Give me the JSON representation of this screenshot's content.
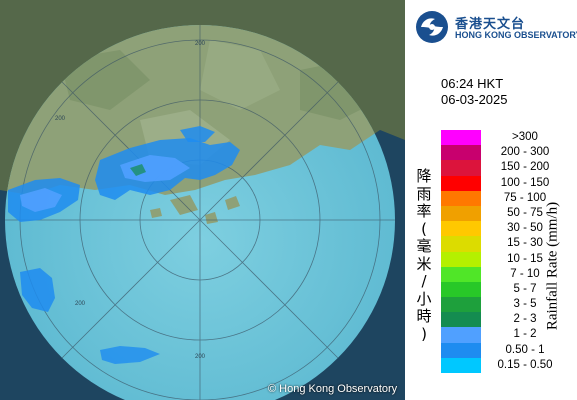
{
  "organization": {
    "name_cn": "香港天文台",
    "name_en": "HONG KONG OBSERVATORY",
    "copyright": "© Hong Kong Observatory"
  },
  "observation": {
    "time": "06:24 HKT",
    "date": "06-03-2025"
  },
  "legend": {
    "title_en": "Rainfall Rate (mm/h)",
    "title_cn": [
      "降",
      "雨",
      "率",
      "(",
      "毫",
      "米",
      "/",
      "小",
      "時",
      ")"
    ],
    "classes": [
      {
        "label": ">300",
        "color": "#ff00ff"
      },
      {
        "label": "200 - 300",
        "color": "#c8006e"
      },
      {
        "label": "150 - 200",
        "color": "#dc143c"
      },
      {
        "label": "100 - 150",
        "color": "#ff0000"
      },
      {
        "label": "75 - 100",
        "color": "#ff7800"
      },
      {
        "label": "50 - 75",
        "color": "#f0a000"
      },
      {
        "label": "30 - 50",
        "color": "#ffc800"
      },
      {
        "label": "15 - 30",
        "color": "#dcdc00"
      },
      {
        "label": "10 - 15",
        "color": "#b4f000"
      },
      {
        "label": "7 - 10",
        "color": "#50e628"
      },
      {
        "label": "5 - 7",
        "color": "#28c828"
      },
      {
        "label": "3 - 5",
        "color": "#1ea03c"
      },
      {
        "label": "2 - 3",
        "color": "#148c50"
      },
      {
        "label": "1 - 2",
        "color": "#50a0ff"
      },
      {
        "label": "0.50 - 1",
        "color": "#1e8cf0"
      },
      {
        "label": "0.15 - 0.50",
        "color": "#00c8ff"
      }
    ]
  },
  "radar": {
    "range_ring_labels": [
      "200",
      "200",
      "200",
      "200"
    ]
  }
}
